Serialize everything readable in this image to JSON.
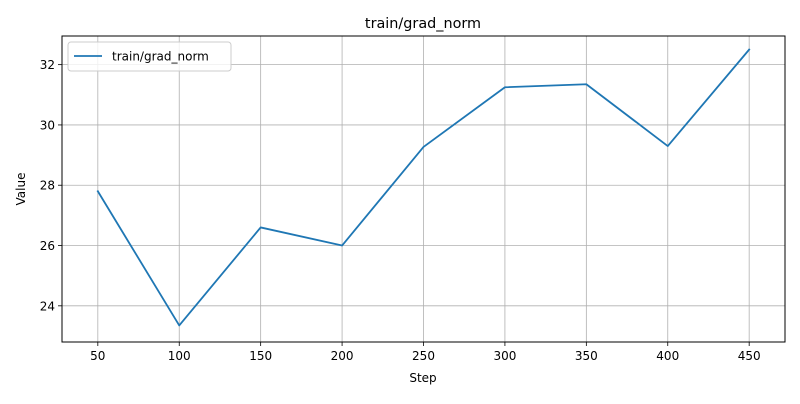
{
  "chart_data": {
    "type": "line",
    "title": "train/grad_norm",
    "xlabel": "Step",
    "ylabel": "Value",
    "x": [
      50,
      100,
      150,
      200,
      250,
      300,
      350,
      400,
      450
    ],
    "series": [
      {
        "name": "train/grad_norm",
        "color": "#1f77b4",
        "values": [
          27.8,
          23.35,
          26.6,
          26.0,
          29.27,
          31.25,
          31.35,
          29.3,
          32.5
        ]
      }
    ],
    "xlim": [
      28,
      472
    ],
    "ylim": [
      22.8,
      32.95
    ],
    "xticks": [
      50,
      100,
      150,
      200,
      250,
      300,
      350,
      400,
      450
    ],
    "yticks": [
      24,
      26,
      28,
      30,
      32
    ],
    "grid": true,
    "legend_position": "top-left"
  }
}
